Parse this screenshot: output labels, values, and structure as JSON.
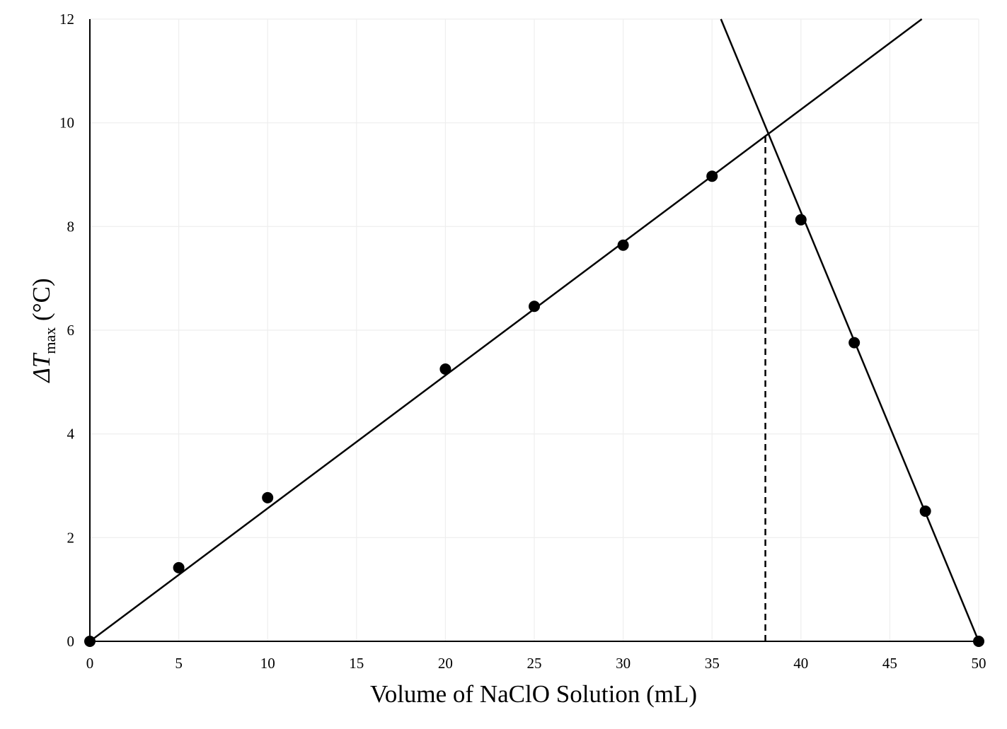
{
  "chart_data": {
    "type": "scatter",
    "title": "",
    "xlabel": "Volume of NaClO Solution (mL)",
    "ylabel": {
      "symbol": "ΔT",
      "subscript": "max",
      "unit": " (°C)"
    },
    "xlim": [
      0,
      50
    ],
    "ylim": [
      0,
      12
    ],
    "x_ticks": [
      "0",
      "5",
      "10",
      "15",
      "20",
      "25",
      "30",
      "35",
      "40",
      "45",
      "50"
    ],
    "y_ticks": [
      "0",
      "2",
      "4",
      "6",
      "8",
      "10",
      "12"
    ],
    "grid": true,
    "legend": "none",
    "series": [
      {
        "values": [
          {
            "x": 0,
            "y": 0
          },
          {
            "x": 5,
            "y": 1.42
          },
          {
            "x": 10,
            "y": 2.77
          },
          {
            "x": 20,
            "y": 5.25
          },
          {
            "x": 25,
            "y": 6.46
          },
          {
            "x": 30,
            "y": 7.64
          },
          {
            "x": 35,
            "y": 8.97
          },
          {
            "x": 40,
            "y": 8.13
          },
          {
            "x": 43,
            "y": 5.76
          },
          {
            "x": 47,
            "y": 2.51
          },
          {
            "x": 50,
            "y": 0
          }
        ]
      }
    ],
    "fit_lines": [
      {
        "x": [
          0,
          46.8
        ],
        "y": [
          0,
          12
        ]
      },
      {
        "x": [
          35.5,
          50
        ],
        "y": [
          12,
          0
        ]
      }
    ],
    "intersection_marker": {
      "x": 38,
      "y_from": 0,
      "y_to": 9.8,
      "style": "dashed"
    },
    "colors": {
      "line": "#000000",
      "marker": "#000000",
      "grid": "#eeeeee",
      "axis": "#000000"
    }
  }
}
